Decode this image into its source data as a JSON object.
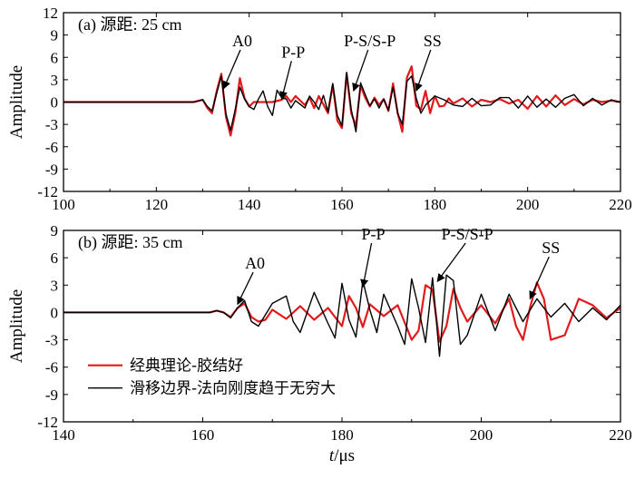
{
  "chart_data": [
    {
      "type": "line",
      "title": "(a) 源距: 25 cm",
      "xlabel": "",
      "ylabel": "Amplitude",
      "xlim": [
        100,
        220
      ],
      "ylim": [
        -12,
        12
      ],
      "xticks": [
        100,
        120,
        140,
        160,
        180,
        200,
        220
      ],
      "yticks": [
        -12,
        -9,
        -6,
        -3,
        0,
        3,
        6,
        9,
        12
      ],
      "grid": false,
      "series": [
        {
          "name": "经典理论-胶结好",
          "color": "#e31a1c",
          "x": [
            100,
            128,
            130,
            131,
            132,
            133,
            134,
            135,
            136,
            137,
            138,
            139,
            140,
            141,
            143,
            145,
            147,
            148,
            149,
            150,
            152,
            153,
            154,
            155,
            156,
            157,
            158,
            159,
            160,
            161,
            162,
            163,
            164,
            165,
            166,
            167,
            168,
            169,
            170,
            171,
            172,
            173,
            174,
            175,
            176,
            177,
            178,
            179,
            180,
            181,
            182,
            183,
            184,
            186,
            188,
            190,
            192,
            194,
            196,
            198,
            200,
            202,
            204,
            206,
            208,
            210,
            212,
            214,
            216,
            218,
            220
          ],
          "y": [
            0,
            0,
            0.3,
            -0.8,
            -1.5,
            1.5,
            3.8,
            -2,
            -4.5,
            -1.5,
            3.2,
            0.5,
            -0.6,
            0,
            0,
            0,
            0.3,
            0.8,
            0,
            0.8,
            -0.4,
            0.6,
            -0.8,
            0.8,
            -0.3,
            -1.5,
            2.3,
            -2.5,
            -3.5,
            3.8,
            -1.5,
            -3.2,
            2.2,
            0.6,
            -0.6,
            0.6,
            -0.4,
            0.4,
            -1.2,
            2.5,
            -1.5,
            -4,
            3.3,
            4.8,
            -0.5,
            -1,
            1.5,
            -1.5,
            0.8,
            -0.6,
            -0.5,
            0.5,
            -0.2,
            0.5,
            -0.6,
            0.3,
            0,
            0.4,
            -0.2,
            0.3,
            -0.9,
            0.8,
            -0.6,
            0.9,
            -0.4,
            0.4,
            -0.3,
            0.3,
            0,
            0.2,
            0
          ]
        },
        {
          "name": "滑移边界-法向刚度趋于无穷大",
          "color": "#000000",
          "x": [
            100,
            128,
            130,
            131,
            132,
            133,
            134,
            135,
            136,
            137,
            138,
            139,
            140,
            141,
            142,
            143,
            144,
            145,
            146,
            147,
            148,
            149,
            150,
            152,
            153,
            154,
            155,
            156,
            157,
            158,
            159,
            160,
            161,
            162,
            163,
            164,
            165,
            166,
            167,
            168,
            169,
            170,
            171,
            172,
            173,
            174,
            175,
            176,
            177,
            178,
            180,
            182,
            184,
            186,
            188,
            190,
            192,
            194,
            196,
            198,
            200,
            202,
            204,
            206,
            208,
            210,
            212,
            214,
            216,
            218,
            220
          ],
          "y": [
            0,
            0,
            0.3,
            -0.6,
            -1.2,
            1.2,
            3.5,
            -1.6,
            -3.8,
            -1,
            2,
            0.4,
            -0.6,
            -1,
            0.4,
            1.5,
            -0.6,
            -1.8,
            1.6,
            0.6,
            0.4,
            -0.8,
            0.2,
            -0.8,
            0.8,
            0,
            -1,
            0.9,
            -1.3,
            2.5,
            -1.8,
            -3.2,
            4,
            -1,
            -4,
            2.6,
            1,
            -0.5,
            0.4,
            -0.8,
            0.4,
            -1.1,
            2,
            -1.5,
            -3,
            2.8,
            3.5,
            0.5,
            -1.5,
            -0.4,
            0.8,
            0.3,
            -0.4,
            -0.6,
            0.5,
            -0.5,
            -0.4,
            0.6,
            0.6,
            -0.8,
            0.8,
            -0.7,
            0.4,
            -0.7,
            0.5,
            1,
            -0.5,
            0.5,
            -0.4,
            0.3,
            0
          ]
        }
      ],
      "annotations": [
        {
          "text": "A0",
          "point": [
            134.5,
            1.8
          ],
          "label_at": [
            138.5,
            7.5
          ]
        },
        {
          "text": "P-P",
          "point": [
            147,
            0.4
          ],
          "label_at": [
            149.5,
            6
          ]
        },
        {
          "text": "P-S/S-P",
          "point": [
            162.5,
            1.5
          ],
          "label_at": [
            166,
            7.5
          ]
        },
        {
          "text": "SS",
          "point": [
            176,
            1.5
          ],
          "label_at": [
            179.5,
            7.5
          ]
        }
      ]
    },
    {
      "type": "line",
      "title": "(b) 源距: 35 cm",
      "xlabel": "t/μs",
      "ylabel": "Amplitude",
      "xlim": [
        140,
        220
      ],
      "ylim": [
        -12,
        9
      ],
      "xticks": [
        140,
        160,
        180,
        200,
        220
      ],
      "yticks": [
        -12,
        -9,
        -6,
        -3,
        0,
        3,
        6,
        9
      ],
      "grid": false,
      "legend_position": "lower-left",
      "series": [
        {
          "name": "经典理论-胶结好",
          "color": "#e31a1c",
          "x": [
            140,
            160,
            161,
            162,
            163,
            164,
            165,
            166,
            167,
            168,
            169,
            170,
            172,
            174,
            176,
            178,
            180,
            181,
            182,
            183,
            184,
            186,
            188,
            190,
            191,
            192,
            193,
            194,
            195,
            196,
            197,
            198,
            200,
            202,
            204,
            205,
            206,
            207,
            208,
            209,
            210,
            212,
            214,
            216,
            218,
            220
          ],
          "y": [
            0,
            0,
            0,
            0.2,
            0,
            -0.5,
            0.5,
            1,
            -0.5,
            -1,
            -0.8,
            0.3,
            -0.7,
            0.7,
            -0.8,
            0.5,
            -1.5,
            1.8,
            0.5,
            -1.6,
            0.9,
            -0.4,
            0.8,
            -3,
            -2,
            3,
            2.5,
            -3.2,
            -1.5,
            2.6,
            0.5,
            -1,
            0.8,
            -1.2,
            1.5,
            -1.5,
            -3,
            0.5,
            3.3,
            1.5,
            -3,
            -2.5,
            1.5,
            0.8,
            -0.6,
            0.5
          ]
        },
        {
          "name": "滑移边界-法向刚度趋于无穷大",
          "color": "#000000",
          "x": [
            140,
            160,
            161,
            162,
            163,
            164,
            165,
            166,
            167,
            168,
            170,
            172,
            173,
            174,
            176,
            178,
            179,
            180,
            181,
            182,
            183,
            184,
            185,
            186,
            188,
            189,
            190,
            191,
            192,
            193,
            194,
            195,
            196,
            197,
            198,
            200,
            202,
            204,
            206,
            208,
            210,
            212,
            214,
            216,
            218,
            220
          ],
          "y": [
            0,
            0,
            0,
            0.2,
            0,
            -0.6,
            0.5,
            1.3,
            -1,
            -1.5,
            1,
            1.8,
            -1,
            -2.2,
            2.2,
            -1.2,
            -2.8,
            3.2,
            -0.8,
            -2.7,
            3.5,
            0.3,
            -2.2,
            2,
            -1.5,
            -3.5,
            3.7,
            0.5,
            -3.3,
            3.8,
            -4.8,
            4.1,
            3.5,
            -3.5,
            -2.5,
            2,
            -2,
            2,
            -1,
            1.5,
            -0.5,
            1,
            -1,
            0.5,
            -0.8,
            0.8
          ]
        }
      ],
      "annotations": [
        {
          "text": "A0",
          "point": [
            165,
            0.9
          ],
          "label_at": [
            167.5,
            4.8
          ]
        },
        {
          "text": "P-P",
          "point": [
            183,
            2.8
          ],
          "label_at": [
            184.5,
            8
          ]
        },
        {
          "text": "P-S/S-P",
          "point": [
            193.7,
            3.4
          ],
          "label_at": [
            198,
            8
          ]
        },
        {
          "text": "SS",
          "point": [
            207,
            1.5
          ],
          "label_at": [
            210,
            6.5
          ]
        }
      ]
    }
  ]
}
